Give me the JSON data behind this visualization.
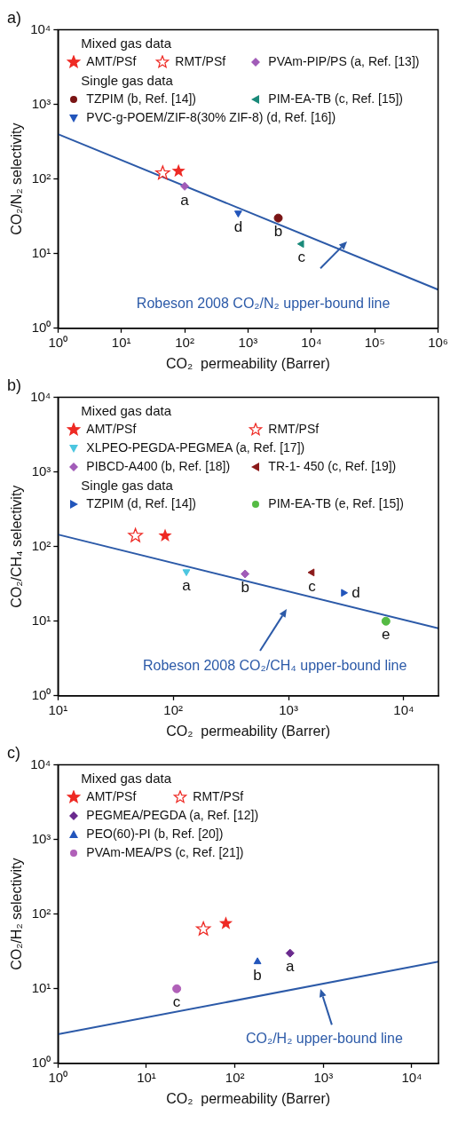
{
  "chart_data": [
    {
      "type": "scatter",
      "title": "a)",
      "xlabel": "CO₂  permeability (Barrer)",
      "ylabel": "CO₂/N₂ selectivity",
      "log": "xy",
      "legend": "top left",
      "xlim": [
        1,
        1000000
      ],
      "ylim": [
        1,
        10000
      ],
      "xticks": [
        {
          "value": 1,
          "label": "10⁰"
        },
        {
          "value": 10,
          "label": "10¹"
        },
        {
          "value": 100,
          "label": "10²"
        },
        {
          "value": 1000,
          "label": "10³"
        },
        {
          "value": 10000,
          "label": "10⁴"
        },
        {
          "value": 100000,
          "label": "10⁵"
        },
        {
          "value": 1000000,
          "label": "10⁶"
        }
      ],
      "yticks": [
        {
          "value": 1,
          "label": "10⁰"
        },
        {
          "value": 10,
          "label": "10¹"
        },
        {
          "value": 100,
          "label": "10²"
        },
        {
          "value": 1000,
          "label": "10³"
        },
        {
          "value": 10000,
          "label": "10⁴"
        }
      ],
      "annotations": [
        "Mixed gas data",
        "Single gas data",
        "Robeson 2008 CO₂/N₂ upper-bound line",
        {
          "text": "a",
          "x": 100,
          "y": 80
        },
        {
          "text": "b",
          "x": 3000,
          "y": 30
        },
        {
          "text": "c",
          "x": 7000,
          "y": 13.5
        },
        {
          "text": "d",
          "x": 700,
          "y": 35
        }
      ],
      "series": [
        {
          "name": "AMT/PSf",
          "color": "#ee2a24",
          "marker": "star",
          "x": [
            80
          ],
          "values": [
            128
          ]
        },
        {
          "name": "RMT/PSf",
          "color": "#ee2a24",
          "marker": "star",
          "x": [
            45
          ],
          "values": [
            120
          ]
        },
        {
          "name": "PVAm-PIP/PS (a, Ref. [13])",
          "color": "#a15cb8",
          "marker": "diamond",
          "x": [
            100
          ],
          "values": [
            80
          ]
        },
        {
          "name": "TZPIM (b, Ref. [14])",
          "color": "#7a1414",
          "marker": "circle",
          "x": [
            3000
          ],
          "values": [
            30
          ]
        },
        {
          "name": "PIM-EA-TB (c, Ref. [15])",
          "color": "#1a8a7a",
          "marker": "triangle",
          "x": [
            7000
          ],
          "values": [
            13.5
          ]
        },
        {
          "name": "PVC-g-POEM/ZIF-8(30% ZIF-8) (d, Ref. [16])",
          "color": "#2255bb",
          "marker": "triangle",
          "x": [
            700
          ],
          "values": [
            35
          ]
        },
        {
          "type": "line",
          "color": "#2c5aa8",
          "marker": "none",
          "x": [
            1,
            1000000
          ],
          "values": [
            400,
            3.3
          ]
        }
      ]
    },
    {
      "type": "scatter",
      "title": "b)",
      "xlabel": "CO₂  permeability (Barrer)",
      "ylabel": "CO₂/CH₄ selectivity",
      "log": "xy",
      "legend": "top left",
      "xlim": [
        10,
        20000
      ],
      "ylim": [
        1,
        10000
      ],
      "xticks": [
        {
          "value": 10,
          "label": "10¹"
        },
        {
          "value": 100,
          "label": "10²"
        },
        {
          "value": 1000,
          "label": "10³"
        },
        {
          "value": 10000,
          "label": "10⁴"
        }
      ],
      "yticks": [
        {
          "value": 1,
          "label": "10⁰"
        },
        {
          "value": 10,
          "label": "10¹"
        },
        {
          "value": 100,
          "label": "10²"
        },
        {
          "value": 1000,
          "label": "10³"
        },
        {
          "value": 10000,
          "label": "10⁴"
        }
      ],
      "annotations": [
        "Mixed gas data",
        "Single gas data",
        "Robeson 2008 CO₂/CH₄ upper-bound line",
        {
          "text": "a",
          "x": 130,
          "y": 46
        },
        {
          "text": "b",
          "x": 420,
          "y": 43
        },
        {
          "text": "c",
          "x": 1600,
          "y": 45
        },
        {
          "text": "d",
          "x": 3000,
          "y": 24
        },
        {
          "text": "e",
          "x": 7000,
          "y": 10
        }
      ],
      "series": [
        {
          "name": "AMT/PSf",
          "color": "#ee2a24",
          "marker": "star",
          "x": [
            85
          ],
          "values": [
            140
          ]
        },
        {
          "name": "RMT/PSf",
          "color": "#ee2a24",
          "marker": "star",
          "x": [
            47
          ],
          "values": [
            140
          ]
        },
        {
          "name": "XLPEO-PEGDA-PEGMEA (a, Ref. [17])",
          "color": "#4cc6e0",
          "marker": "triangle",
          "x": [
            130
          ],
          "values": [
            46
          ]
        },
        {
          "name": "PIBCD-A400 (b, Ref. [18])",
          "color": "#a15cb8",
          "marker": "diamond",
          "x": [
            420
          ],
          "values": [
            43
          ]
        },
        {
          "name": "TR-1- 450 (c, Ref. [19])",
          "color": "#8b1a1a",
          "marker": "triangle",
          "x": [
            1600
          ],
          "values": [
            45
          ]
        },
        {
          "name": "TZPIM (d, Ref. [14])",
          "color": "#2255bb",
          "marker": "triangle",
          "x": [
            3000
          ],
          "values": [
            24
          ]
        },
        {
          "name": "PIM-EA-TB (e, Ref. [15])",
          "color": "#55bb44",
          "marker": "circle",
          "x": [
            7000
          ],
          "values": [
            10
          ]
        },
        {
          "type": "line",
          "color": "#2c5aa8",
          "marker": "none",
          "x": [
            10,
            20000
          ],
          "values": [
            145,
            8
          ]
        }
      ]
    },
    {
      "type": "scatter",
      "title": "c)",
      "xlabel": "CO₂  permeability (Barrer)",
      "ylabel": "CO₂/H₂ selectivity",
      "log": "xy",
      "legend": "top left",
      "xlim": [
        1,
        20000
      ],
      "ylim": [
        1,
        10000
      ],
      "xticks": [
        {
          "value": 1,
          "label": "10⁰"
        },
        {
          "value": 10,
          "label": "10¹"
        },
        {
          "value": 100,
          "label": "10²"
        },
        {
          "value": 1000,
          "label": "10³"
        },
        {
          "value": 10000,
          "label": "10⁴"
        }
      ],
      "yticks": [
        {
          "value": 1,
          "label": "10⁰"
        },
        {
          "value": 10,
          "label": "10¹"
        },
        {
          "value": 100,
          "label": "10²"
        },
        {
          "value": 1000,
          "label": "10³"
        },
        {
          "value": 10000,
          "label": "10⁴"
        }
      ],
      "annotations": [
        "Mixed gas data",
        "CO₂/H₂ upper-bound line",
        {
          "text": "a",
          "x": 420,
          "y": 30
        },
        {
          "text": "b",
          "x": 180,
          "y": 23
        },
        {
          "text": "c",
          "x": 22,
          "y": 10
        }
      ],
      "series": [
        {
          "name": "AMT/PSf",
          "color": "#ee2a24",
          "marker": "star",
          "x": [
            79
          ],
          "values": [
            75
          ]
        },
        {
          "name": "RMT/PSf",
          "color": "#ee2a24",
          "marker": "star",
          "x": [
            44
          ],
          "values": [
            63
          ]
        },
        {
          "name": "PEGMEA/PEGDA (a, Ref. [12])",
          "color": "#6a2a8e",
          "marker": "diamond",
          "x": [
            420
          ],
          "values": [
            30
          ]
        },
        {
          "name": "PEO(60)-PI (b, Ref. [20])",
          "color": "#2255bb",
          "marker": "triangle",
          "x": [
            180
          ],
          "values": [
            23
          ]
        },
        {
          "name": "PVAm-MEA/PS (c, Ref. [21])",
          "color": "#b060b8",
          "marker": "circle",
          "x": [
            22
          ],
          "values": [
            10
          ]
        },
        {
          "type": "line",
          "color": "#2c5aa8",
          "marker": "none",
          "x": [
            1,
            20000
          ],
          "values": [
            2.45,
            23
          ]
        }
      ]
    }
  ]
}
